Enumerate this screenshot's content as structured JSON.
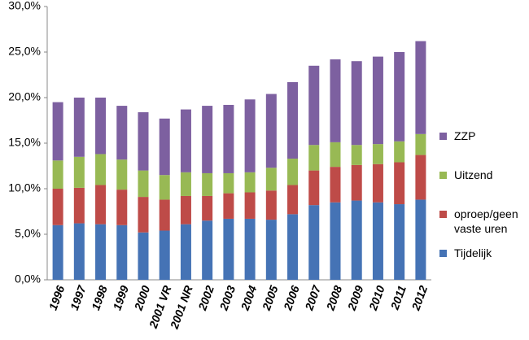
{
  "chart_data": {
    "type": "stacked_bar",
    "categories": [
      "1996",
      "1997",
      "1998",
      "1999",
      "2000",
      "2001 VR",
      "2001 NR",
      "2002",
      "2003",
      "2004",
      "2005",
      "2006",
      "2007",
      "2008",
      "2009",
      "2010",
      "2011",
      "2012"
    ],
    "series": [
      {
        "name": "Tijdelijk",
        "color": "#4573b5",
        "values": [
          6.0,
          6.2,
          6.1,
          6.0,
          5.2,
          5.4,
          6.1,
          6.5,
          6.7,
          6.7,
          6.6,
          7.2,
          8.2,
          8.5,
          8.7,
          8.5,
          8.3,
          8.8
        ]
      },
      {
        "name": "oproep/geen vaste uren",
        "color": "#be4b48",
        "values": [
          4.0,
          3.9,
          4.3,
          3.9,
          3.9,
          3.4,
          3.1,
          2.7,
          2.8,
          2.9,
          3.2,
          3.2,
          3.8,
          3.9,
          3.9,
          4.2,
          4.6,
          4.9
        ]
      },
      {
        "name": "Uitzend",
        "color": "#98b954",
        "values": [
          3.1,
          3.4,
          3.4,
          3.3,
          2.9,
          2.7,
          2.6,
          2.5,
          2.2,
          2.2,
          2.5,
          2.9,
          2.8,
          2.7,
          2.2,
          2.2,
          2.3,
          2.3
        ]
      },
      {
        "name": "ZZP",
        "color": "#7d60a0",
        "values": [
          6.4,
          6.5,
          6.2,
          5.9,
          6.4,
          6.2,
          6.9,
          7.4,
          7.5,
          8.0,
          8.1,
          8.4,
          8.7,
          9.1,
          9.2,
          9.6,
          9.8,
          10.2
        ]
      }
    ],
    "ylim": [
      0,
      30
    ],
    "yticks": [
      {
        "value": 0,
        "label": "0,0%"
      },
      {
        "value": 5,
        "label": "5,0%"
      },
      {
        "value": 10,
        "label": "10,0%"
      },
      {
        "value": 15,
        "label": "15,0%"
      },
      {
        "value": 20,
        "label": "20,0%"
      },
      {
        "value": 25,
        "label": "25,0%"
      },
      {
        "value": 30,
        "label": "30,0%"
      }
    ],
    "grid": false,
    "legend": "right"
  }
}
